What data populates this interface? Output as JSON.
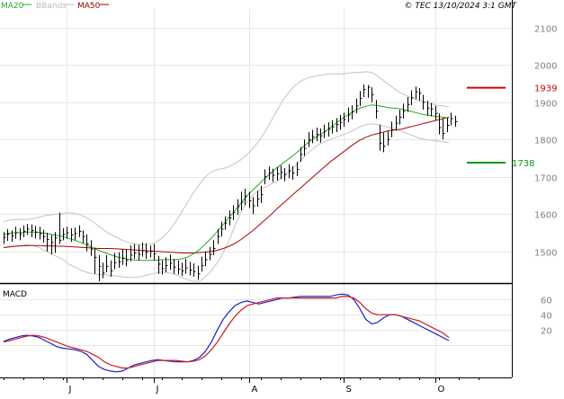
{
  "header": {
    "legend": [
      {
        "label": "MA20",
        "color": "#2fa52f"
      },
      {
        "label": "BBands",
        "color": "#bdbdbd"
      },
      {
        "label": "MA50",
        "color": "#a00000"
      }
    ],
    "copyright": "© TEC 13/10/2024 3:1 GMT"
  },
  "colors": {
    "ma20": "#22aa22",
    "bbands": "#c4c4c4",
    "ma50": "#b00000",
    "bars": "#000000",
    "grid": "#e6e6e6",
    "macd": "#1e1ed2",
    "signal": "#c81e1e",
    "axis_text": "#808080",
    "resistance": "#d40000",
    "support": "#0a9a0a"
  },
  "chart_data": [
    {
      "type": "ohlc",
      "title": "",
      "xlabel": "",
      "ylabel": "",
      "x_ticks": [
        "J",
        "J",
        "A",
        "S",
        "O"
      ],
      "y_ticks": [
        1500,
        1600,
        1700,
        1800,
        1900,
        2000,
        2100
      ],
      "ylim": [
        1420,
        2150
      ],
      "grid": true,
      "price_bars": [
        [
          1538,
          1552,
          1520
        ],
        [
          1546,
          1560,
          1528
        ],
        [
          1542,
          1556,
          1526
        ],
        [
          1550,
          1566,
          1534
        ],
        [
          1546,
          1562,
          1530
        ],
        [
          1554,
          1570,
          1538
        ],
        [
          1560,
          1574,
          1544
        ],
        [
          1556,
          1572,
          1538
        ],
        [
          1552,
          1568,
          1534
        ],
        [
          1548,
          1566,
          1532
        ],
        [
          1540,
          1558,
          1524
        ],
        [
          1532,
          1550,
          1500
        ],
        [
          1524,
          1544,
          1492
        ],
        [
          1536,
          1552,
          1496
        ],
        [
          1530,
          1604,
          1520
        ],
        [
          1546,
          1562,
          1530
        ],
        [
          1550,
          1566,
          1534
        ],
        [
          1544,
          1562,
          1526
        ],
        [
          1548,
          1564,
          1530
        ],
        [
          1554,
          1570,
          1538
        ],
        [
          1540,
          1556,
          1522
        ],
        [
          1520,
          1546,
          1500
        ],
        [
          1506,
          1530,
          1488
        ],
        [
          1484,
          1510,
          1440
        ],
        [
          1460,
          1490,
          1420
        ],
        [
          1442,
          1470,
          1428
        ],
        [
          1460,
          1490,
          1444
        ],
        [
          1448,
          1476,
          1432
        ],
        [
          1470,
          1496,
          1452
        ],
        [
          1472,
          1498,
          1456
        ],
        [
          1482,
          1506,
          1464
        ],
        [
          1476,
          1504,
          1460
        ],
        [
          1490,
          1516,
          1474
        ],
        [
          1496,
          1520,
          1480
        ],
        [
          1492,
          1518,
          1476
        ],
        [
          1502,
          1524,
          1486
        ],
        [
          1498,
          1522,
          1480
        ],
        [
          1500,
          1516,
          1484
        ],
        [
          1494,
          1520,
          1476
        ],
        [
          1466,
          1488,
          1440
        ],
        [
          1454,
          1476,
          1438
        ],
        [
          1462,
          1484,
          1444
        ],
        [
          1468,
          1492,
          1450
        ],
        [
          1458,
          1480,
          1440
        ],
        [
          1452,
          1476,
          1438
        ],
        [
          1448,
          1470,
          1434
        ],
        [
          1456,
          1480,
          1440
        ],
        [
          1450,
          1472,
          1436
        ],
        [
          1446,
          1468,
          1432
        ],
        [
          1440,
          1462,
          1424
        ],
        [
          1462,
          1486,
          1446
        ],
        [
          1478,
          1500,
          1460
        ],
        [
          1492,
          1512,
          1476
        ],
        [
          1508,
          1530,
          1490
        ],
        [
          1540,
          1560,
          1520
        ],
        [
          1560,
          1580,
          1540
        ],
        [
          1576,
          1594,
          1558
        ],
        [
          1590,
          1610,
          1570
        ],
        [
          1604,
          1624,
          1584
        ],
        [
          1620,
          1640,
          1598
        ],
        [
          1632,
          1660,
          1610
        ],
        [
          1648,
          1668,
          1624
        ],
        [
          1636,
          1660,
          1616
        ],
        [
          1622,
          1646,
          1600
        ],
        [
          1640,
          1662,
          1620
        ],
        [
          1652,
          1676,
          1630
        ],
        [
          1700,
          1720,
          1680
        ],
        [
          1710,
          1728,
          1692
        ],
        [
          1704,
          1722,
          1686
        ],
        [
          1708,
          1726,
          1690
        ],
        [
          1712,
          1730,
          1694
        ],
        [
          1706,
          1724,
          1688
        ],
        [
          1716,
          1734,
          1696
        ],
        [
          1710,
          1728,
          1692
        ],
        [
          1720,
          1740,
          1702
        ],
        [
          1760,
          1780,
          1740
        ],
        [
          1776,
          1800,
          1756
        ],
        [
          1800,
          1820,
          1780
        ],
        [
          1808,
          1826,
          1790
        ],
        [
          1814,
          1832,
          1796
        ],
        [
          1810,
          1830,
          1792
        ],
        [
          1822,
          1840,
          1804
        ],
        [
          1828,
          1846,
          1808
        ],
        [
          1834,
          1852,
          1816
        ],
        [
          1840,
          1858,
          1820
        ],
        [
          1846,
          1866,
          1826
        ],
        [
          1854,
          1872,
          1834
        ],
        [
          1866,
          1886,
          1846
        ],
        [
          1874,
          1892,
          1854
        ],
        [
          1890,
          1910,
          1870
        ],
        [
          1910,
          1930,
          1890
        ],
        [
          1934,
          1948,
          1914
        ],
        [
          1940,
          1946,
          1912
        ],
        [
          1920,
          1940,
          1900
        ],
        [
          1876,
          1906,
          1856
        ],
        [
          1790,
          1840,
          1770
        ],
        [
          1782,
          1818,
          1766
        ],
        [
          1800,
          1822,
          1784
        ],
        [
          1826,
          1848,
          1806
        ],
        [
          1844,
          1864,
          1824
        ],
        [
          1860,
          1880,
          1840
        ],
        [
          1876,
          1896,
          1856
        ],
        [
          1894,
          1914,
          1874
        ],
        [
          1912,
          1932,
          1892
        ],
        [
          1928,
          1942,
          1908
        ],
        [
          1924,
          1938,
          1904
        ],
        [
          1900,
          1920,
          1880
        ],
        [
          1884,
          1904,
          1864
        ],
        [
          1882,
          1898,
          1862
        ],
        [
          1870,
          1890,
          1852
        ],
        [
          1832,
          1870,
          1814
        ],
        [
          1816,
          1856,
          1800
        ],
        [
          1838,
          1858,
          1820
        ],
        [
          1856,
          1872,
          1838
        ],
        [
          1848,
          1864,
          1834
        ]
      ],
      "ma20": [
        1545,
        1549,
        1550,
        1551,
        1552,
        1552,
        1551,
        1549,
        1546,
        1543,
        1540,
        1535,
        1530,
        1524,
        1517,
        1510,
        1503,
        1497,
        1491,
        1486,
        1482,
        1479,
        1477,
        1476,
        1476,
        1476,
        1477,
        1478,
        1478,
        1478,
        1480,
        1485,
        1494,
        1505,
        1520,
        1536,
        1554,
        1572,
        1592,
        1610,
        1630,
        1649,
        1665,
        1680,
        1696,
        1710,
        1724,
        1736,
        1748,
        1760,
        1774,
        1788,
        1800,
        1810,
        1820,
        1832,
        1844,
        1856,
        1866,
        1876,
        1884,
        1889,
        1893,
        1891,
        1888,
        1885,
        1884,
        1882,
        1878,
        1874,
        1870,
        1866,
        1864,
        1862,
        1860,
        1858
      ],
      "ma20_x_step": 1.5,
      "bb_upper": [
        1580,
        1584,
        1585,
        1586,
        1586,
        1588,
        1592,
        1596,
        1598,
        1600,
        1602,
        1604,
        1602,
        1598,
        1590,
        1580,
        1568,
        1556,
        1546,
        1538,
        1530,
        1524,
        1520,
        1518,
        1518,
        1520,
        1528,
        1540,
        1558,
        1580,
        1606,
        1632,
        1658,
        1680,
        1700,
        1714,
        1720,
        1722,
        1728,
        1736,
        1746,
        1760,
        1776,
        1796,
        1820,
        1848,
        1876,
        1904,
        1926,
        1944,
        1956,
        1964,
        1968,
        1972,
        1974,
        1976,
        1976,
        1976,
        1978,
        1980,
        1980,
        1982,
        1980,
        1970,
        1958,
        1946,
        1934,
        1924,
        1916,
        1910,
        1904,
        1900,
        1896,
        1892,
        1890,
        1888
      ],
      "bb_lower": [
        1510,
        1514,
        1515,
        1516,
        1518,
        1516,
        1510,
        1502,
        1494,
        1486,
        1478,
        1466,
        1458,
        1450,
        1444,
        1440,
        1438,
        1438,
        1436,
        1434,
        1432,
        1430,
        1430,
        1432,
        1436,
        1440,
        1444,
        1444,
        1442,
        1438,
        1430,
        1424,
        1420,
        1420,
        1432,
        1448,
        1470,
        1496,
        1530,
        1570,
        1606,
        1632,
        1652,
        1664,
        1672,
        1680,
        1688,
        1700,
        1714,
        1728,
        1744,
        1760,
        1774,
        1786,
        1794,
        1800,
        1806,
        1812,
        1818,
        1826,
        1834,
        1840,
        1842,
        1840,
        1836,
        1832,
        1828,
        1822,
        1816,
        1810,
        1804,
        1800,
        1798,
        1796,
        1794,
        1792
      ],
      "ma50": [
        1510,
        1512,
        1514,
        1515,
        1516,
        1516,
        1516,
        1515,
        1515,
        1514,
        1514,
        1513,
        1512,
        1511,
        1510,
        1509,
        1508,
        1508,
        1508,
        1507,
        1506,
        1505,
        1504,
        1503,
        1502,
        1501,
        1500,
        1499,
        1498,
        1497,
        1496,
        1496,
        1496,
        1497,
        1498,
        1500,
        1503,
        1508,
        1514,
        1522,
        1532,
        1544,
        1556,
        1570,
        1584,
        1598,
        1614,
        1628,
        1642,
        1656,
        1670,
        1684,
        1698,
        1712,
        1726,
        1740,
        1752,
        1764,
        1776,
        1788,
        1798,
        1806,
        1812,
        1816,
        1820,
        1824,
        1826,
        1828,
        1832,
        1836,
        1840,
        1844,
        1848,
        1852,
        1856,
        1860
      ],
      "resistance": {
        "value": "1939",
        "level": 1939
      },
      "support": {
        "value": "1738",
        "level": 1738
      }
    },
    {
      "type": "line",
      "title": "MACD",
      "xlabel": "",
      "ylabel": "",
      "y_ticks": [
        "20",
        "40",
        "60"
      ],
      "ylim": [
        -40,
        78
      ],
      "grid": true,
      "series": [
        {
          "name": "",
          "color_key": "macd",
          "values": [
            5,
            8,
            10,
            12,
            13,
            12,
            10,
            6,
            2,
            -2,
            -4,
            -5,
            -6,
            -8,
            -12,
            -20,
            -28,
            -32,
            -34,
            -35,
            -34,
            -30,
            -26,
            -24,
            -22,
            -20,
            -19,
            -20,
            -21,
            -22,
            -22,
            -22,
            -20,
            -16,
            -8,
            4,
            20,
            34,
            44,
            52,
            56,
            58,
            56,
            54,
            56,
            58,
            60,
            62,
            62,
            63,
            64,
            64,
            64,
            64,
            64,
            64,
            66,
            67,
            66,
            60,
            48,
            34,
            28,
            30,
            36,
            40,
            40,
            38,
            34,
            30,
            26,
            22,
            18,
            14,
            10,
            6
          ]
        },
        {
          "name": "",
          "color_key": "signal",
          "values": [
            4,
            6,
            8,
            10,
            12,
            13,
            12,
            10,
            7,
            4,
            1,
            -2,
            -4,
            -6,
            -8,
            -12,
            -16,
            -22,
            -26,
            -28,
            -30,
            -30,
            -28,
            -26,
            -24,
            -22,
            -20,
            -20,
            -20,
            -20,
            -21,
            -22,
            -21,
            -19,
            -14,
            -6,
            4,
            16,
            28,
            38,
            46,
            52,
            54,
            56,
            58,
            60,
            62,
            62,
            62,
            62,
            62,
            62,
            62,
            62,
            62,
            62,
            62,
            64,
            64,
            62,
            56,
            48,
            42,
            40,
            40,
            40,
            40,
            38,
            36,
            34,
            32,
            28,
            24,
            20,
            16,
            10
          ]
        }
      ]
    }
  ]
}
